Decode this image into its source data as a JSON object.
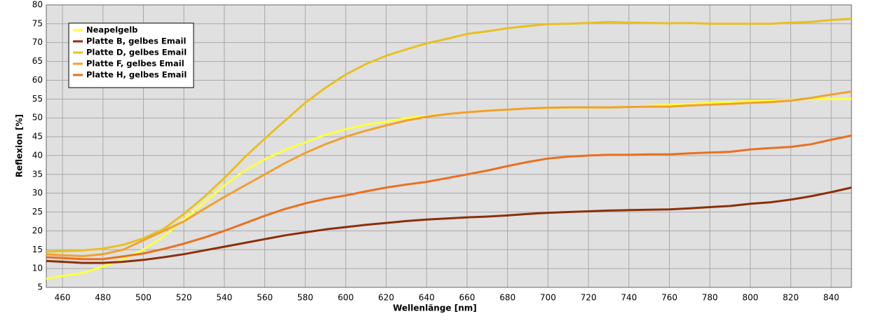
{
  "chart_data": {
    "type": "line",
    "x_label": "Wellenlänge [nm]",
    "y_label": "Reflexion [%]",
    "x": [
      452,
      460,
      470,
      480,
      490,
      500,
      510,
      520,
      530,
      540,
      550,
      560,
      570,
      580,
      590,
      600,
      610,
      620,
      630,
      640,
      650,
      660,
      670,
      680,
      690,
      700,
      710,
      720,
      730,
      740,
      750,
      760,
      770,
      780,
      790,
      800,
      810,
      820,
      830,
      840,
      850
    ],
    "series": [
      {
        "name": "Neapelgelb",
        "color": "#ffff40",
        "values": [
          7.3,
          8,
          8.8,
          10.5,
          12.5,
          15,
          18.5,
          23,
          27.5,
          32,
          36,
          39,
          41.5,
          43.5,
          45.5,
          47,
          48.2,
          49,
          50,
          50.5,
          51,
          51.5,
          52,
          52.2,
          52.5,
          52.6,
          52.7,
          52.7,
          52.8,
          53,
          53.2,
          53.5,
          53.7,
          54,
          54.2,
          54.5,
          54.6,
          54.8,
          55,
          55,
          55
        ]
      },
      {
        "name": "Platte B, gelbes Email",
        "color": "#8b2f0a",
        "values": [
          12,
          11.8,
          11.5,
          11.5,
          11.8,
          12.3,
          13,
          13.8,
          14.8,
          15.8,
          16.8,
          17.8,
          18.8,
          19.6,
          20.4,
          21,
          21.6,
          22.1,
          22.6,
          23,
          23.3,
          23.6,
          23.8,
          24.1,
          24.5,
          24.8,
          25,
          25.2,
          25.4,
          25.5,
          25.6,
          25.7,
          26,
          26.3,
          26.6,
          27.2,
          27.6,
          28.3,
          29.2,
          30.3,
          31.5
        ]
      },
      {
        "name": "Platte D, gelbes Email",
        "color": "#e8c020",
        "values": [
          14.5,
          14.6,
          14.8,
          15.3,
          16.3,
          18,
          20.5,
          24.5,
          29,
          34,
          39.5,
          44.5,
          49.3,
          54,
          58,
          61.5,
          64.3,
          66.5,
          68.2,
          69.8,
          71,
          72.3,
          73,
          73.8,
          74.4,
          74.9,
          75,
          75.2,
          75.5,
          75.3,
          75.2,
          75.1,
          75.2,
          75,
          75,
          75,
          75,
          75.3,
          75.5,
          76,
          76.3
        ]
      },
      {
        "name": "Platte F, gelbes Email",
        "color": "#f0a030",
        "values": [
          13.8,
          13.5,
          13.3,
          13.8,
          15,
          17.5,
          20,
          22.5,
          25.8,
          29,
          32,
          35,
          38,
          40.7,
          43,
          45,
          46.6,
          48,
          49.3,
          50.3,
          51,
          51.5,
          51.9,
          52.2,
          52.5,
          52.7,
          52.8,
          52.8,
          52.8,
          52.9,
          53,
          53,
          53.3,
          53.5,
          53.7,
          54,
          54.2,
          54.6,
          55.3,
          56.2,
          57
        ]
      },
      {
        "name": "Platte H, gelbes Email",
        "color": "#e87020",
        "values": [
          13,
          12.8,
          12.5,
          12.5,
          13.2,
          14,
          15.2,
          16.6,
          18.2,
          20,
          22,
          24,
          25.8,
          27.3,
          28.5,
          29.4,
          30.5,
          31.5,
          32.3,
          33,
          34,
          35,
          36,
          37.2,
          38.3,
          39.2,
          39.7,
          40,
          40.2,
          40.2,
          40.3,
          40.3,
          40.6,
          40.8,
          41,
          41.6,
          42,
          42.3,
          43,
          44.2,
          45.3
        ]
      }
    ],
    "xlim": [
      452,
      850
    ],
    "ylim": [
      5,
      80
    ],
    "xticks": [
      460,
      480,
      500,
      520,
      540,
      560,
      580,
      600,
      620,
      640,
      660,
      680,
      700,
      720,
      740,
      760,
      780,
      800,
      820,
      840
    ],
    "yticks": [
      5,
      10,
      15,
      20,
      25,
      30,
      35,
      40,
      45,
      50,
      55,
      60,
      65,
      70,
      75,
      80
    ],
    "grid": true,
    "legend": "upper-left"
  }
}
